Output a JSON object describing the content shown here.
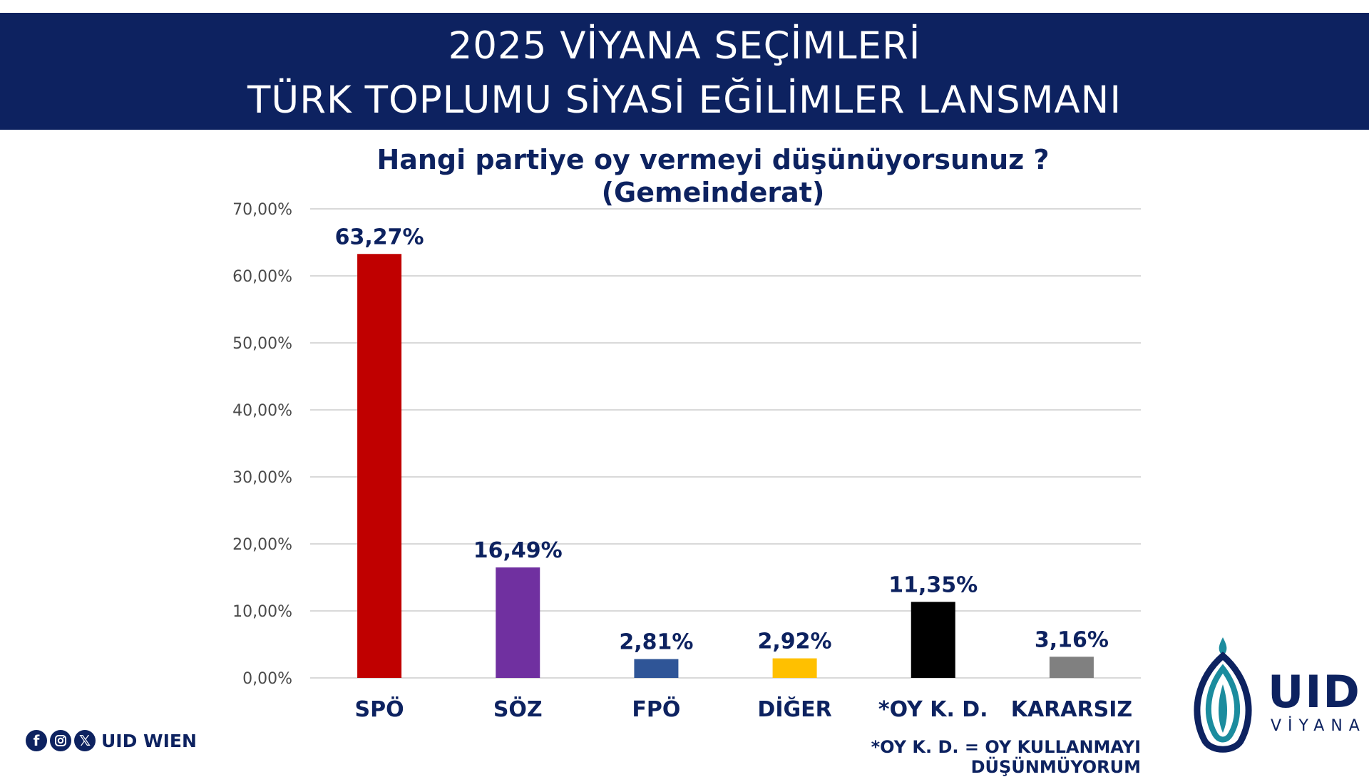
{
  "header": {
    "line1": "2025 VİYANA SEÇİMLERİ",
    "line2": "TÜRK TOPLUMU SİYASİ EĞİLİMLER LANSMANI"
  },
  "chart_data": {
    "type": "bar",
    "title": "Hangi partiye oy vermeyi düşünüyorsunuz ?",
    "subtitle": "(Gemeinderat)",
    "categories": [
      "SPÖ",
      "SÖZ",
      "FPÖ",
      "DİĞER",
      "*OY K. D.",
      "KARARSIZ"
    ],
    "values": [
      63.27,
      16.49,
      2.81,
      2.92,
      11.35,
      3.16
    ],
    "value_labels": [
      "63,27%",
      "16,49%",
      "2,81%",
      "2,92%",
      "11,35%",
      "3,16%"
    ],
    "colors": [
      "#c00000",
      "#7030a0",
      "#2f5597",
      "#ffc000",
      "#000000",
      "#808080"
    ],
    "ylim": [
      0,
      70
    ],
    "yticks": [
      "0,00%",
      "10,00%",
      "20,00%",
      "30,00%",
      "40,00%",
      "50,00%",
      "60,00%",
      "70,00%"
    ],
    "grid": true,
    "legend": "none"
  },
  "footnote": "*OY K. D.  =  OY KULLANMAYI DÜŞÜNMÜYORUM",
  "social": {
    "icons": [
      "facebook-icon",
      "instagram-icon",
      "x-icon"
    ],
    "handle": "UID WIEN"
  },
  "logo": {
    "main": "UID",
    "sub": "VİYANA"
  },
  "colors": {
    "brand_navy": "#0d2260",
    "logo_teal": "#1b8c9e"
  }
}
